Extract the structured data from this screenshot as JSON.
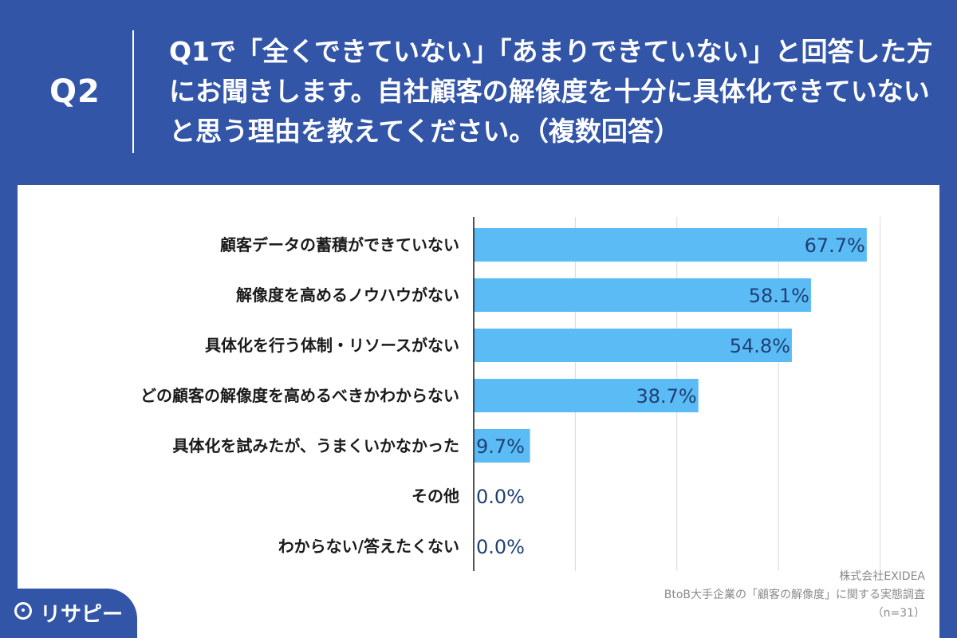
{
  "header": {
    "question_label": "Q2",
    "question_text": "Q1で「全くできていない」「あまりできていない」と回答した方にお聞きします。自社顧客の解像度を十分に具体化できていないと思う理由を教えてください。（複数回答）"
  },
  "chart_data": {
    "type": "bar",
    "orientation": "horizontal",
    "categories": [
      "顧客データの蓄積ができていない",
      "解像度を高めるノウハウがない",
      "具体化を行う体制・リソースがない",
      "どの顧客の解像度を高めるべきかわからない",
      "具体化を試みたが、うまくいかなかった",
      "その他",
      "わからない/答えたくない"
    ],
    "values": [
      67.7,
      58.1,
      54.8,
      38.7,
      9.7,
      0.0,
      0.0
    ],
    "value_labels": [
      "67.7%",
      "58.1%",
      "54.8%",
      "38.7%",
      "9.7%",
      "0.0%",
      "0.0%"
    ],
    "xlim": [
      0,
      70
    ],
    "grid": true,
    "bar_color": "#5bbcf5"
  },
  "source": {
    "line1": "株式会社EXIDEA",
    "line2": "BtoB大手企業の「顧客の解像度」に関する実態調査",
    "line3": "（n=31）"
  },
  "logo": {
    "text": "リサピー"
  },
  "colors": {
    "background": "#3355a8",
    "panel": "#ffffff",
    "bar": "#5bbcf5",
    "value_text": "#1f3f75"
  }
}
